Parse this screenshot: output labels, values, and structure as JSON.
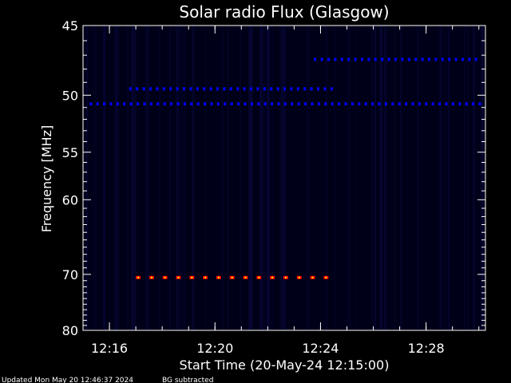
{
  "chart_data": {
    "type": "heatmap",
    "title": "Solar radio Flux (Glasgow)",
    "xlabel": "Start Time (20-May-24 12:15:00)",
    "ylabel": "Frequency [MHz]",
    "xlim_minutes": [
      12.25,
      15.25
    ],
    "x_ticks": [
      {
        "minutes": 12.2667,
        "label": "12:16"
      },
      {
        "minutes": 12.3333,
        "label": "12:20"
      },
      {
        "minutes": 12.4,
        "label": "12:24"
      },
      {
        "minutes": 12.4667,
        "label": "12:28"
      }
    ],
    "ylim": [
      45,
      80
    ],
    "y_ticks": [
      45,
      50,
      55,
      60,
      70,
      80
    ],
    "y_scale": "reciprocal",
    "background_color": "#000018",
    "colormap": [
      "#000018",
      "#0000ff",
      "#ff0000",
      "#ffff00"
    ],
    "features": [
      {
        "name": "band_49.5MHz",
        "freq": 49.5,
        "time_start": "12:16:45",
        "time_end": "12:24:30",
        "intensity": 0.45
      },
      {
        "name": "band_50.7MHz",
        "freq": 50.7,
        "time_start": "12:15:15",
        "time_end": "12:30:00",
        "intensity": 0.45
      },
      {
        "name": "band_47.3MHz",
        "freq": 47.3,
        "time_start": "12:23:45",
        "time_end": "12:30:00",
        "intensity": 0.4
      },
      {
        "name": "burst_70.5MHz",
        "freq": 70.5,
        "time_start": "12:17:00",
        "time_end": "12:24:15",
        "intensity": 0.9
      }
    ],
    "x_tick_labels": [
      "12:16",
      "12:20",
      "12:24",
      "12:28"
    ],
    "y_tick_labels": [
      "45",
      "50",
      "55",
      "60",
      "70",
      "80"
    ]
  },
  "footer": {
    "updated": "Updated Mon May 20 12:46:37 2024",
    "note": "BG subtracted"
  }
}
